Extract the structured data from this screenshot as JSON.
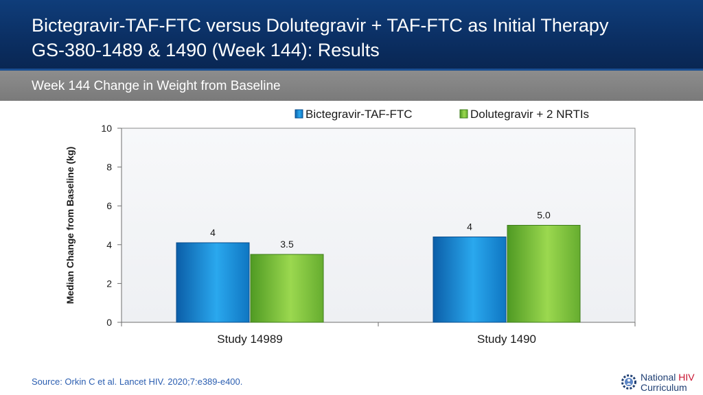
{
  "header": {
    "title_line1": "Bictegravir-TAF-FTC versus Dolutegravir + TAF-FTC as Initial Therapy",
    "title_line2": "GS-380-1489 & 1490 (Week 144): Results"
  },
  "subheader": {
    "text": "Week 144 Change in Weight from Baseline"
  },
  "chart_data": {
    "type": "bar",
    "title": "",
    "xlabel": "",
    "ylabel": "Median Change from Baseline (kg)",
    "categories": [
      "Study 14989",
      "Study 1490"
    ],
    "ylim": [
      0,
      10
    ],
    "yticks": [
      0,
      2,
      4,
      6,
      8,
      10
    ],
    "grid": false,
    "legend_position": "top-right",
    "series": [
      {
        "name": "Bictegravir-TAF-FTC",
        "values": [
          4.1,
          4.4
        ],
        "labels": [
          "4",
          "4"
        ],
        "color": "#1a8fd8"
      },
      {
        "name": "Dolutegravir + 2 NRTIs",
        "values": [
          3.5,
          5.0
        ],
        "labels": [
          "3.5",
          "5.0"
        ],
        "color": "#7cc242"
      }
    ]
  },
  "footer": {
    "source": "Source: Orkin C et al. Lancet HIV. 2020;7:e389-e400.",
    "logo_word1": "National ",
    "logo_word1_accent": "HIV",
    "logo_word2": "Curriculum",
    "logo_icon": "gear-people-icon"
  },
  "colors": {
    "title_bg": "#0b2f63",
    "subtitle_bg": "#808080",
    "plot_bg": "#eef0f3",
    "source_text": "#2a5db0"
  }
}
